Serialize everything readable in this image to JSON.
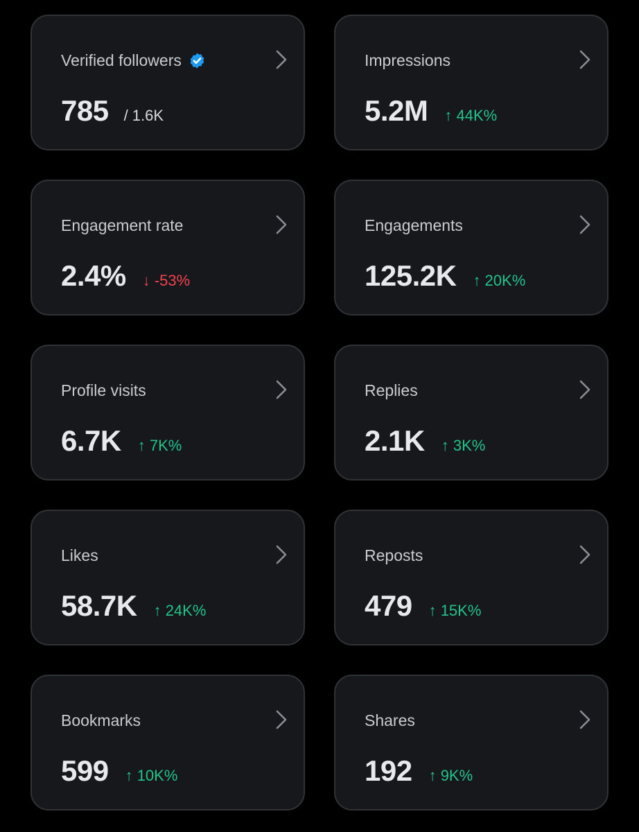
{
  "theme": {
    "background": "#000000",
    "card_background": "#16181c",
    "card_border": "#2f3336",
    "text_primary": "#e7e9ea",
    "text_secondary": "#c9ccd1",
    "positive": "#22c48a",
    "negative": "#f4424f",
    "verified_blue": "#1d9bf0"
  },
  "cards": [
    {
      "title": "Verified followers",
      "icon": "verified-badge-icon",
      "value": "785",
      "sub": "/ 1.6K"
    },
    {
      "title": "Impressions",
      "value": "5.2M",
      "change": "↑ 44K%",
      "direction": "up"
    },
    {
      "title": "Engagement rate",
      "value": "2.4%",
      "change": "↓ -53%",
      "direction": "down"
    },
    {
      "title": "Engagements",
      "value": "125.2K",
      "change": "↑ 20K%",
      "direction": "up"
    },
    {
      "title": "Profile visits",
      "value": "6.7K",
      "change": "↑ 7K%",
      "direction": "up"
    },
    {
      "title": "Replies",
      "value": "2.1K",
      "change": "↑ 3K%",
      "direction": "up"
    },
    {
      "title": "Likes",
      "value": "58.7K",
      "change": "↑ 24K%",
      "direction": "up"
    },
    {
      "title": "Reposts",
      "value": "479",
      "change": "↑ 15K%",
      "direction": "up"
    },
    {
      "title": "Bookmarks",
      "value": "599",
      "change": "↑ 10K%",
      "direction": "up"
    },
    {
      "title": "Shares",
      "value": "192",
      "change": "↑ 9K%",
      "direction": "up"
    }
  ]
}
